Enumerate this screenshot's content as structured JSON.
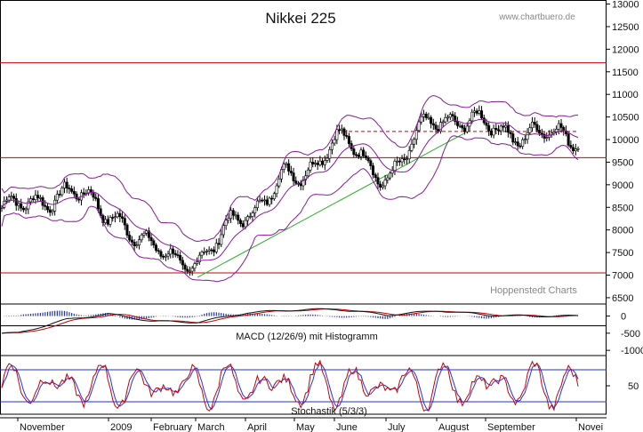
{
  "chart_data": {
    "type": "candlestick",
    "title": "Nikkei 225",
    "source_label": "www.chartbuero.de",
    "credit_label": "Hoppenstedt Charts",
    "price_panel": {
      "ylim": [
        6400,
        13050
      ],
      "y_ticks": [
        6500,
        7000,
        7500,
        8000,
        8500,
        9000,
        9500,
        10000,
        10500,
        11000,
        11500,
        12000,
        12500,
        13000
      ],
      "horizontal_lines": [
        11700,
        9600,
        7050
      ],
      "dashed_line": {
        "start_month": "June",
        "level": 10180
      },
      "trend_line": {
        "from": [
          "March",
          6950
        ],
        "to": [
          "August",
          10150
        ]
      },
      "close_by_month": [
        {
          "month": "November",
          "value": 8500
        },
        {
          "month": "December",
          "value": 8850
        },
        {
          "month": "2009",
          "value": 8400
        },
        {
          "month": "February",
          "value": 7550
        },
        {
          "month": "March",
          "value": 7300
        },
        {
          "month": "April",
          "value": 8450
        },
        {
          "month": "May",
          "value": 9200
        },
        {
          "month": "June",
          "value": 9950
        },
        {
          "month": "July",
          "value": 9250
        },
        {
          "month": "August",
          "value": 10500
        },
        {
          "month": "September",
          "value": 10300
        },
        {
          "month": "October",
          "value": 10100
        }
      ]
    },
    "macd_panel": {
      "label": "MACD (12/26/9) mit Histogramm",
      "ylim": [
        -1100,
        300
      ],
      "y_ticks": [
        0,
        -500,
        -1000
      ],
      "macd_by_month": [
        {
          "month": "November",
          "value": -500
        },
        {
          "month": "December",
          "value": -100
        },
        {
          "month": "2009",
          "value": 60
        },
        {
          "month": "February",
          "value": -150
        },
        {
          "month": "March",
          "value": -180
        },
        {
          "month": "April",
          "value": 100
        },
        {
          "month": "May",
          "value": 180
        },
        {
          "month": "June",
          "value": 200
        },
        {
          "month": "July",
          "value": 30
        },
        {
          "month": "August",
          "value": 160
        },
        {
          "month": "September",
          "value": 30
        },
        {
          "month": "October",
          "value": 0
        }
      ]
    },
    "stoch_panel": {
      "label": "Stochastik (5/3/3)",
      "ylim": [
        0,
        100
      ],
      "y_ticks": [
        50
      ],
      "levels": [
        80,
        20
      ]
    },
    "x_labels": [
      "November",
      "2009",
      "February",
      "March",
      "April",
      "May",
      "June",
      "July",
      "August",
      "September",
      "Novei"
    ],
    "colors": {
      "bollinger": "#8a1a9c",
      "horizontal_lines": "#cc0000",
      "trend_line": "#2db32d",
      "macd_line": "#111111",
      "signal_line": "#cc0000",
      "histogram": "#2233aa",
      "stoch_k": "#cc0000",
      "stoch_d": "#2233ee",
      "stoch_levels": "#2233cc"
    }
  }
}
